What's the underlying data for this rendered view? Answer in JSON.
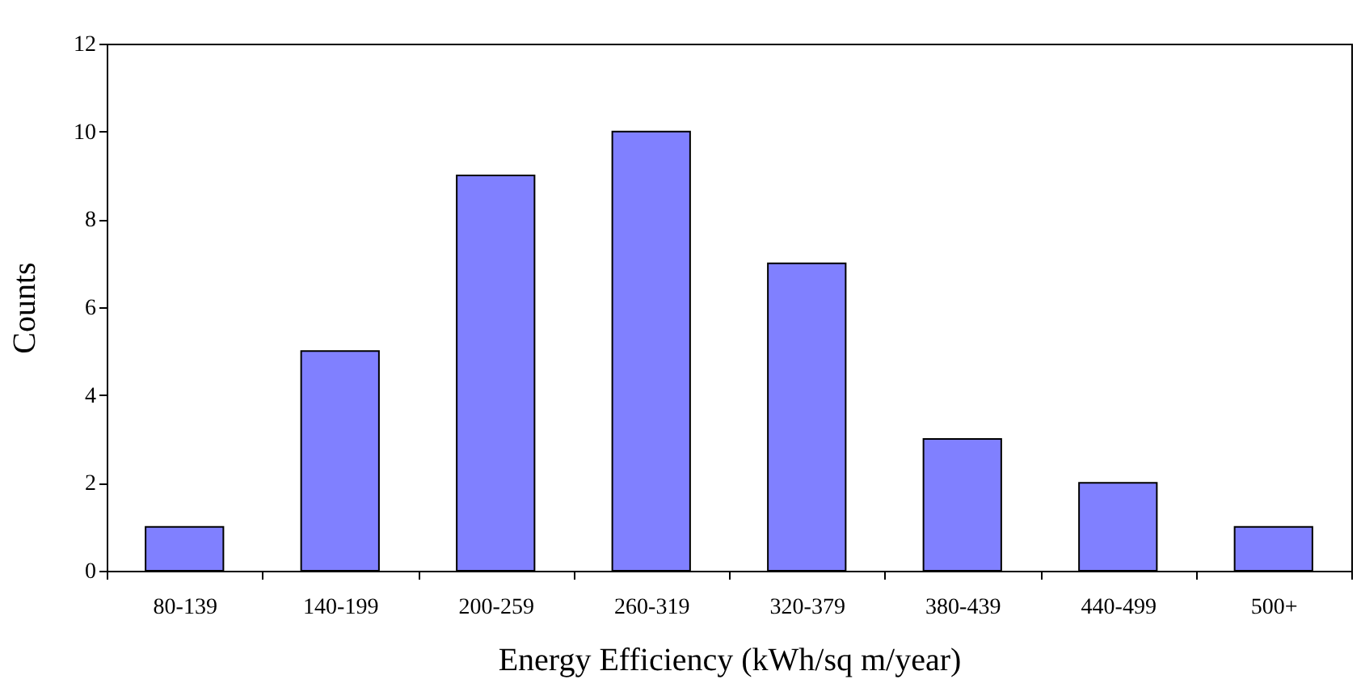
{
  "chart_data": {
    "type": "bar",
    "xlabel": "Energy Efficiency (kWh/sq m/year)",
    "ylabel": "Counts",
    "categories": [
      "80-139",
      "140-199",
      "200-259",
      "260-319",
      "320-379",
      "380-439",
      "440-499",
      "500+"
    ],
    "values": [
      1,
      5,
      9,
      10,
      7,
      3,
      2,
      1
    ],
    "color": "#8080ff",
    "ylim": [
      0,
      12
    ],
    "yticks": [
      0,
      2,
      4,
      6,
      8,
      10,
      12
    ],
    "grid": false
  }
}
